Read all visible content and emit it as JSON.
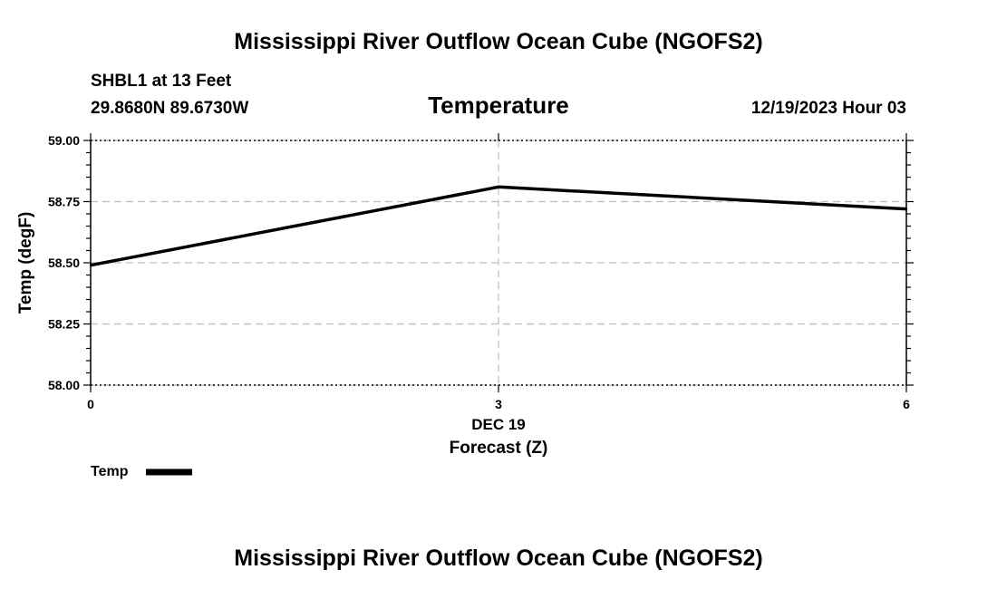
{
  "chart_data": {
    "type": "line",
    "title": "Mississippi River Outflow Ocean Cube (NGOFS2)",
    "footer_title": "Mississippi River Outflow Ocean Cube (NGOFS2)",
    "station": "SHBL1 at 13 Feet",
    "location": "29.8680N  89.6730W",
    "subtitle": "Temperature",
    "datetime": "12/19/2023 Hour 03",
    "xlabel": "Forecast (Z)",
    "xdate_label": "DEC 19",
    "ylabel": "Temp (degF)",
    "xlim": [
      0,
      6
    ],
    "ylim": [
      58.0,
      59.0
    ],
    "x_ticks": [
      "0",
      "3",
      "6"
    ],
    "y_ticks": [
      "58.00",
      "58.25",
      "58.50",
      "58.75",
      "59.00"
    ],
    "grid": true,
    "legend_position": "bottom-left",
    "series": [
      {
        "name": "Temp",
        "color": "#000000",
        "x": [
          0,
          3,
          6
        ],
        "values": [
          58.49,
          58.81,
          58.72
        ]
      }
    ]
  }
}
